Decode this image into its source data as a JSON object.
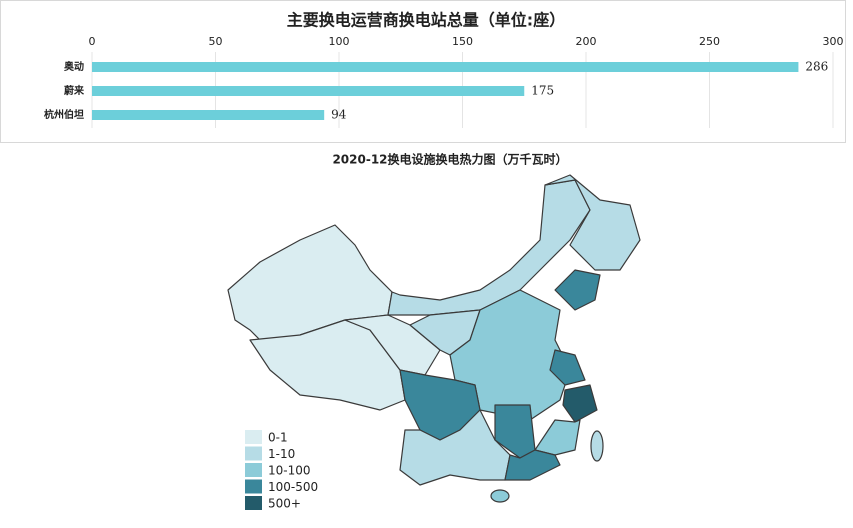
{
  "chart_data": [
    {
      "type": "bar",
      "title": "主要换电运营商换电站总量（单位:座）",
      "categories": [
        "奥动",
        "蔚来",
        "杭州伯坦"
      ],
      "values": [
        286,
        175,
        94
      ],
      "color": "#6ccfda",
      "xlim": [
        0,
        300
      ],
      "xticks": [
        0,
        50,
        100,
        150,
        200,
        250,
        300
      ],
      "grid": true
    },
    {
      "type": "map",
      "title": "2020-12换电设施换电热力图（万千瓦时）",
      "legend": [
        {
          "label": "0-1",
          "color": "#daedf1"
        },
        {
          "label": "1-10",
          "color": "#b6dce6"
        },
        {
          "label": "10-100",
          "color": "#8ccbd8"
        },
        {
          "label": "100-500",
          "color": "#3a879b"
        },
        {
          "label": "500+",
          "color": "#235b6a"
        }
      ]
    }
  ]
}
